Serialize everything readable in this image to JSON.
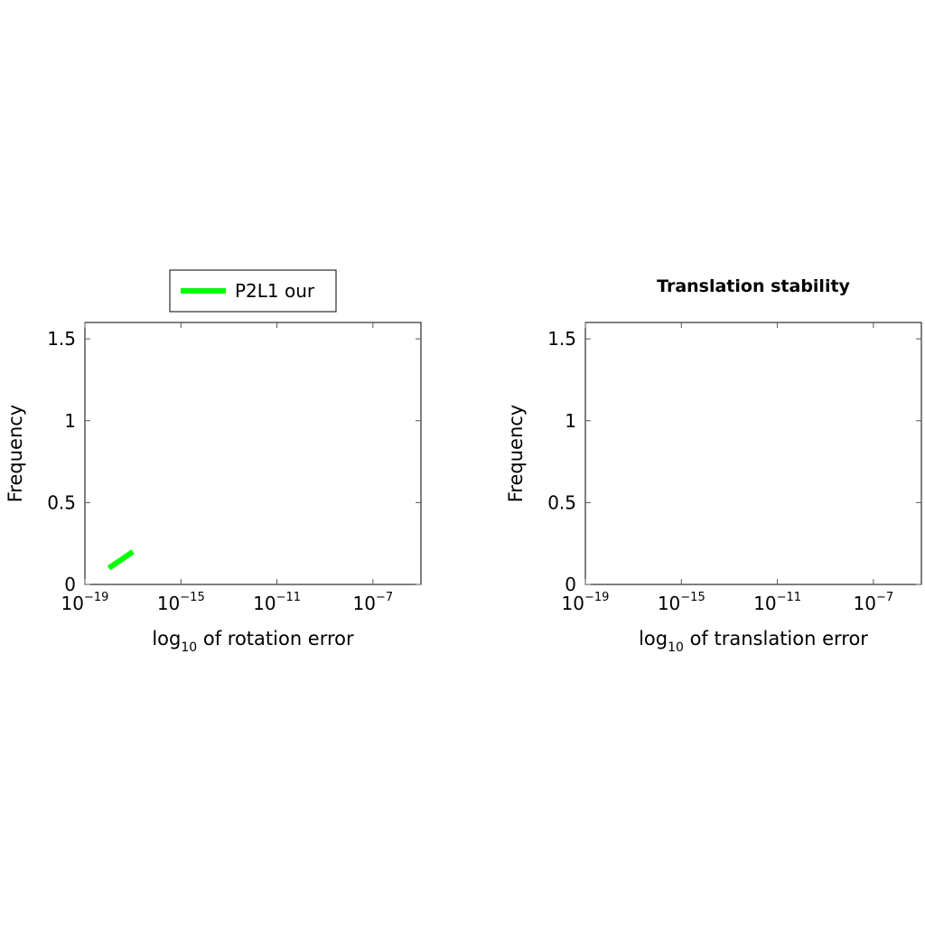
{
  "chart_data": [
    {
      "type": "line",
      "title": "",
      "xlabel_base": "log",
      "xlabel_sub": "10",
      "xlabel_rest": " of rotation error",
      "ylabel": "Frequency",
      "x_scale": "log",
      "xlim": [
        1e-19,
        1e-05
      ],
      "ylim": [
        0,
        1.6
      ],
      "x_ticks": [
        {
          "base": "10",
          "exp": "−19",
          "value": 1e-19
        },
        {
          "base": "10",
          "exp": "−15",
          "value": 1e-15
        },
        {
          "base": "10",
          "exp": "−11",
          "value": 1e-11
        },
        {
          "base": "10",
          "exp": "−7",
          "value": 1e-07
        }
      ],
      "y_ticks": [
        {
          "label": "0",
          "value": 0
        },
        {
          "label": "0.5",
          "value": 0.5
        },
        {
          "label": "1",
          "value": 1
        },
        {
          "label": "1.5",
          "value": 1.5
        }
      ],
      "grid": false,
      "legend": {
        "placement": "top-center-above",
        "entries": [
          "P2L1 our"
        ]
      },
      "series": [
        {
          "name": "P2L1 our",
          "color": "#00ff00",
          "x": [
            1e-18,
            1e-17
          ],
          "y": [
            0.1,
            0.2
          ]
        }
      ]
    },
    {
      "type": "line",
      "title": "Translation stability",
      "xlabel_base": "log",
      "xlabel_sub": "10",
      "xlabel_rest": " of translation error",
      "ylabel": "Frequency",
      "x_scale": "log",
      "xlim": [
        1e-19,
        1e-05
      ],
      "ylim": [
        0,
        1.6
      ],
      "x_ticks": [
        {
          "base": "10",
          "exp": "−19",
          "value": 1e-19
        },
        {
          "base": "10",
          "exp": "−15",
          "value": 1e-15
        },
        {
          "base": "10",
          "exp": "−11",
          "value": 1e-11
        },
        {
          "base": "10",
          "exp": "−7",
          "value": 1e-07
        }
      ],
      "y_ticks": [
        {
          "label": "0",
          "value": 0
        },
        {
          "label": "0.5",
          "value": 0.5
        },
        {
          "label": "1",
          "value": 1
        },
        {
          "label": "1.5",
          "value": 1.5
        }
      ],
      "grid": false,
      "series": []
    }
  ]
}
